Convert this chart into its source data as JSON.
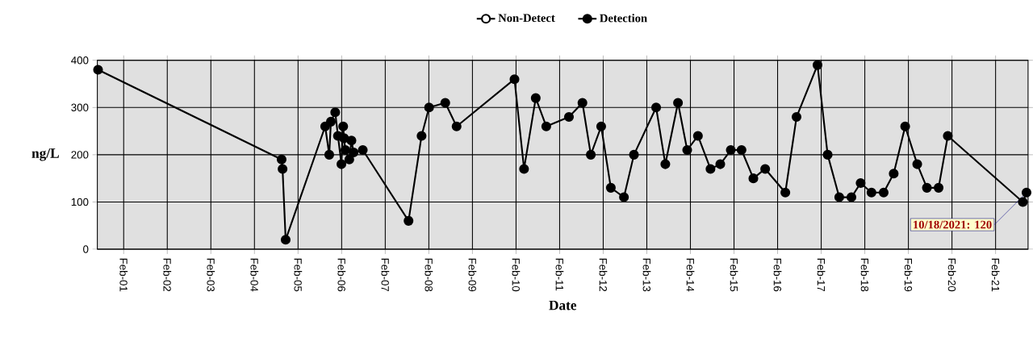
{
  "chart_data": {
    "type": "line",
    "xlabel": "Date",
    "ylabel": "ng/L",
    "x": [
      "2000-07-01",
      "2004-09-16",
      "2004-09-24",
      "2004-10-20",
      "2005-09-16",
      "2005-10-20",
      "2005-11-03",
      "2005-12-09",
      "2006-01-01",
      "2006-01-30",
      "2006-02-14",
      "2006-02-21",
      "2006-03-04",
      "2006-04-06",
      "2006-04-24",
      "2006-05-12",
      "2006-07-28",
      "2007-08-15",
      "2007-12-02",
      "2008-02-03",
      "2008-06-18",
      "2008-09-21",
      "2010-01-19",
      "2010-04-09",
      "2010-07-16",
      "2010-10-12",
      "2011-04-20",
      "2011-08-11",
      "2011-10-20",
      "2012-01-15",
      "2012-04-05",
      "2012-07-24",
      "2012-10-16",
      "2013-04-20",
      "2013-07-06",
      "2013-10-20",
      "2014-01-05",
      "2014-04-05",
      "2014-07-19",
      "2014-10-09",
      "2015-01-05",
      "2015-04-05",
      "2015-07-13",
      "2015-10-20",
      "2016-04-06",
      "2016-07-09",
      "2017-01-01",
      "2017-03-27",
      "2017-07-02",
      "2017-10-12",
      "2017-12-28",
      "2018-03-29",
      "2018-07-09",
      "2018-10-01",
      "2019-01-05",
      "2019-04-16",
      "2019-07-06",
      "2019-10-12",
      "2019-12-28",
      "2021-09-17",
      "2021-10-18"
    ],
    "series": [
      {
        "name": "Non-Detect",
        "color": "#ffffff",
        "values": [
          null,
          null,
          null,
          null,
          null,
          null,
          null,
          null,
          null,
          null,
          null,
          null,
          null,
          null,
          null,
          null,
          null,
          null,
          null,
          null,
          null,
          null,
          null,
          null,
          null,
          null,
          null,
          null,
          null,
          null,
          null,
          null,
          null,
          null,
          null,
          null,
          null,
          null,
          null,
          null,
          null,
          null,
          null,
          null,
          null,
          null,
          null,
          null,
          null,
          null,
          null,
          null,
          null,
          null,
          null,
          null,
          null,
          null,
          null,
          null,
          null
        ]
      },
      {
        "name": "Detection",
        "color": "#000000",
        "values": [
          380,
          190,
          170,
          20,
          260,
          200,
          270,
          290,
          240,
          180,
          260,
          235,
          210,
          190,
          230,
          205,
          210,
          60,
          240,
          300,
          310,
          260,
          360,
          170,
          320,
          260,
          280,
          310,
          200,
          260,
          130,
          110,
          200,
          300,
          180,
          310,
          210,
          240,
          170,
          180,
          210,
          210,
          150,
          170,
          120,
          280,
          390,
          200,
          110,
          110,
          140,
          120,
          120,
          160,
          260,
          180,
          130,
          130,
          240,
          100,
          120
        ]
      }
    ],
    "xlim": [
      "2000-06-25",
      "2021-10-31"
    ],
    "xticks": [
      {
        "value": "2001-02-01",
        "label": "Feb-01"
      },
      {
        "value": "2002-02-01",
        "label": "Feb-02"
      },
      {
        "value": "2003-02-01",
        "label": "Feb-03"
      },
      {
        "value": "2004-02-01",
        "label": "Feb-04"
      },
      {
        "value": "2005-02-01",
        "label": "Feb-05"
      },
      {
        "value": "2006-02-01",
        "label": "Feb-06"
      },
      {
        "value": "2007-02-01",
        "label": "Feb-07"
      },
      {
        "value": "2008-02-01",
        "label": "Feb-08"
      },
      {
        "value": "2009-02-01",
        "label": "Feb-09"
      },
      {
        "value": "2010-02-01",
        "label": "Feb-10"
      },
      {
        "value": "2011-02-01",
        "label": "Feb-11"
      },
      {
        "value": "2012-02-01",
        "label": "Feb-12"
      },
      {
        "value": "2013-02-01",
        "label": "Feb-13"
      },
      {
        "value": "2014-02-01",
        "label": "Feb-14"
      },
      {
        "value": "2015-02-01",
        "label": "Feb-15"
      },
      {
        "value": "2016-02-01",
        "label": "Feb-16"
      },
      {
        "value": "2017-02-01",
        "label": "Feb-17"
      },
      {
        "value": "2018-02-01",
        "label": "Feb-18"
      },
      {
        "value": "2019-02-01",
        "label": "Feb-19"
      },
      {
        "value": "2020-02-01",
        "label": "Feb-20"
      },
      {
        "value": "2021-02-01",
        "label": "Feb-21"
      }
    ],
    "ylim": [
      0,
      400
    ],
    "yticks": [
      0,
      100,
      200,
      300,
      400
    ],
    "grid": true,
    "legend": "top",
    "marker": "circle",
    "line_style": "solid",
    "annotations": [
      {
        "text": "10/18/2021: 120",
        "x": "2021-10-18",
        "y": 120
      }
    ]
  }
}
